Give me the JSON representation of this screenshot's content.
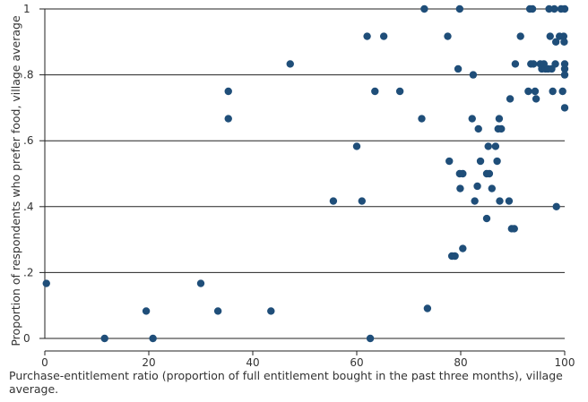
{
  "chart_data": {
    "type": "scatter",
    "title": "",
    "xlabel": "Purchase-entitlement ratio (proportion of full entitlement bought in the past three months), village average.",
    "ylabel": "Proportion of respondents who prefer food, village average",
    "xlim": [
      0,
      100
    ],
    "ylim": [
      0,
      1
    ],
    "x_ticks": [
      "0",
      "20",
      "40",
      "60",
      "80",
      "100"
    ],
    "x_tick_values": [
      0,
      20,
      40,
      60,
      80,
      100
    ],
    "y_ticks": [
      "0",
      ".2",
      ".4",
      ".6",
      ".8",
      "1"
    ],
    "y_tick_values": [
      0,
      0.2,
      0.4,
      0.6,
      0.8,
      1
    ],
    "grid": "horizontal",
    "marker_color": "#1f4e79",
    "points": [
      {
        "x": 0.3,
        "y": 0.167
      },
      {
        "x": 11.5,
        "y": 0.0
      },
      {
        "x": 19.5,
        "y": 0.083
      },
      {
        "x": 20.8,
        "y": 0.0
      },
      {
        "x": 30.0,
        "y": 0.167
      },
      {
        "x": 33.3,
        "y": 0.083
      },
      {
        "x": 35.3,
        "y": 0.75
      },
      {
        "x": 35.3,
        "y": 0.667
      },
      {
        "x": 43.5,
        "y": 0.083
      },
      {
        "x": 47.2,
        "y": 0.833
      },
      {
        "x": 55.5,
        "y": 0.417
      },
      {
        "x": 60.0,
        "y": 0.583
      },
      {
        "x": 61.0,
        "y": 0.417
      },
      {
        "x": 62.0,
        "y": 0.917
      },
      {
        "x": 62.6,
        "y": 0.0
      },
      {
        "x": 63.5,
        "y": 0.75
      },
      {
        "x": 65.2,
        "y": 0.917
      },
      {
        "x": 68.3,
        "y": 0.75
      },
      {
        "x": 72.5,
        "y": 0.667
      },
      {
        "x": 73.0,
        "y": 1.0
      },
      {
        "x": 73.6,
        "y": 0.091
      },
      {
        "x": 77.5,
        "y": 0.917
      },
      {
        "x": 77.8,
        "y": 0.538
      },
      {
        "x": 78.3,
        "y": 0.25
      },
      {
        "x": 78.9,
        "y": 0.25
      },
      {
        "x": 79.5,
        "y": 0.818
      },
      {
        "x": 79.8,
        "y": 1.0
      },
      {
        "x": 79.8,
        "y": 0.5
      },
      {
        "x": 79.9,
        "y": 0.455
      },
      {
        "x": 80.4,
        "y": 0.5
      },
      {
        "x": 80.4,
        "y": 0.273
      },
      {
        "x": 82.2,
        "y": 0.667
      },
      {
        "x": 82.4,
        "y": 0.8
      },
      {
        "x": 82.7,
        "y": 0.417
      },
      {
        "x": 83.2,
        "y": 0.462
      },
      {
        "x": 83.4,
        "y": 0.636
      },
      {
        "x": 83.8,
        "y": 0.538
      },
      {
        "x": 85.0,
        "y": 0.5
      },
      {
        "x": 85.0,
        "y": 0.364
      },
      {
        "x": 85.3,
        "y": 0.583
      },
      {
        "x": 85.5,
        "y": 0.5
      },
      {
        "x": 86.0,
        "y": 0.455
      },
      {
        "x": 86.7,
        "y": 0.583
      },
      {
        "x": 87.0,
        "y": 0.538
      },
      {
        "x": 87.2,
        "y": 0.636
      },
      {
        "x": 87.4,
        "y": 0.667
      },
      {
        "x": 87.5,
        "y": 0.417
      },
      {
        "x": 87.8,
        "y": 0.636
      },
      {
        "x": 89.3,
        "y": 0.417
      },
      {
        "x": 89.5,
        "y": 0.727
      },
      {
        "x": 89.8,
        "y": 0.333
      },
      {
        "x": 90.3,
        "y": 0.333
      },
      {
        "x": 90.5,
        "y": 0.833
      },
      {
        "x": 91.5,
        "y": 0.917
      },
      {
        "x": 93.0,
        "y": 0.75
      },
      {
        "x": 93.3,
        "y": 1.0
      },
      {
        "x": 93.5,
        "y": 0.833
      },
      {
        "x": 93.8,
        "y": 1.0
      },
      {
        "x": 94.0,
        "y": 0.833
      },
      {
        "x": 94.3,
        "y": 0.75
      },
      {
        "x": 94.5,
        "y": 0.727
      },
      {
        "x": 95.3,
        "y": 0.833
      },
      {
        "x": 95.6,
        "y": 0.818
      },
      {
        "x": 96.0,
        "y": 0.833
      },
      {
        "x": 96.3,
        "y": 0.818
      },
      {
        "x": 96.8,
        "y": 0.818
      },
      {
        "x": 97.0,
        "y": 1.0
      },
      {
        "x": 97.2,
        "y": 0.917
      },
      {
        "x": 97.5,
        "y": 0.818
      },
      {
        "x": 97.7,
        "y": 0.75
      },
      {
        "x": 98.0,
        "y": 1.0
      },
      {
        "x": 98.2,
        "y": 0.833
      },
      {
        "x": 98.3,
        "y": 0.9
      },
      {
        "x": 98.4,
        "y": 0.4
      },
      {
        "x": 99.0,
        "y": 0.917
      },
      {
        "x": 99.3,
        "y": 1.0
      },
      {
        "x": 99.6,
        "y": 0.75
      },
      {
        "x": 99.8,
        "y": 0.917
      },
      {
        "x": 99.9,
        "y": 0.9
      },
      {
        "x": 100.0,
        "y": 1.0
      },
      {
        "x": 100.0,
        "y": 0.833
      },
      {
        "x": 100.0,
        "y": 0.818
      },
      {
        "x": 100.0,
        "y": 0.8
      },
      {
        "x": 100.0,
        "y": 0.7
      }
    ]
  }
}
